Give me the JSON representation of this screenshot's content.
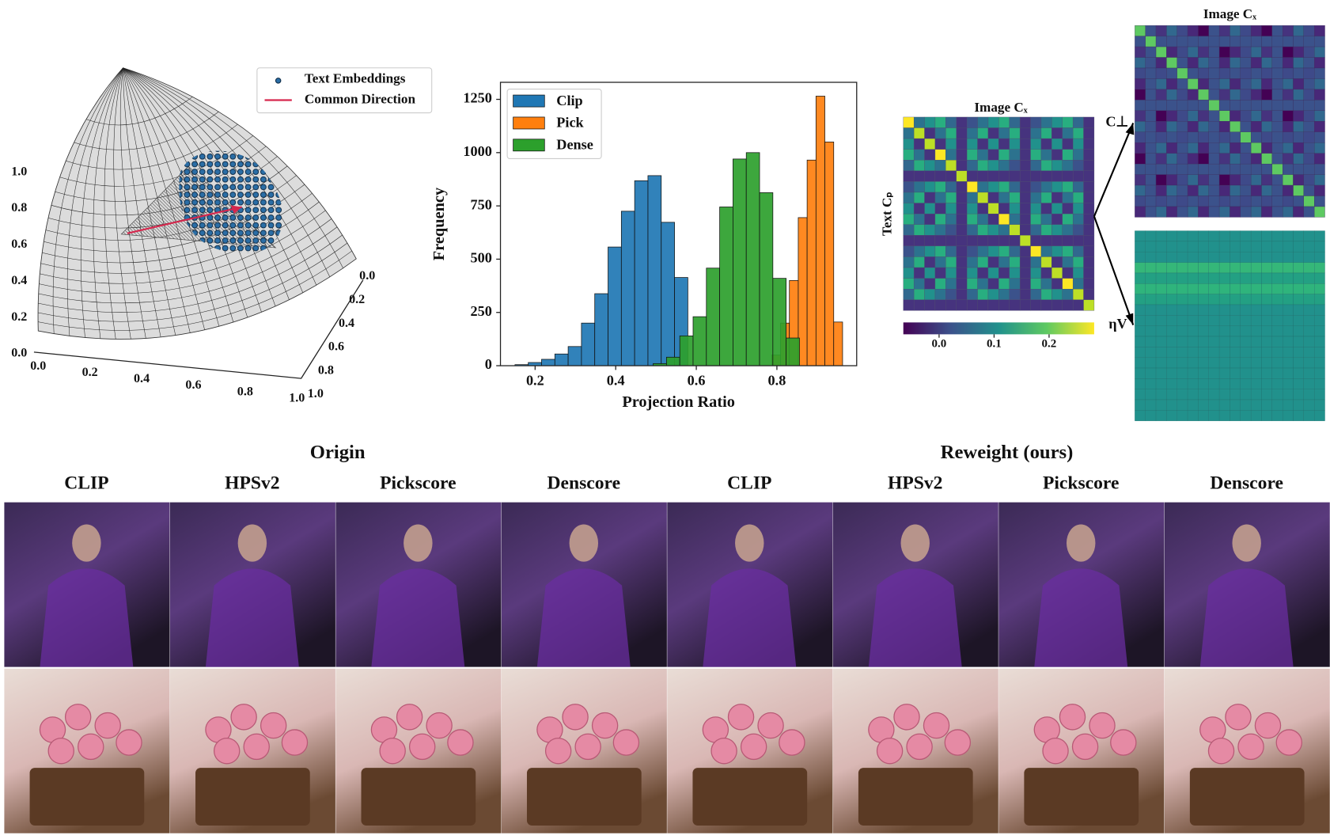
{
  "chart_data": [
    {
      "type": "sphere3d",
      "legend": [
        {
          "name": "Text Embeddings",
          "color": "#2b6ea6"
        },
        {
          "name": "Common Direction",
          "color": "#d6274d"
        }
      ],
      "xlim": [
        0,
        1
      ],
      "ylim": [
        0,
        1
      ],
      "zlim": [
        0,
        1
      ],
      "xticks": [
        {
          "value": 0,
          "label": "0.0"
        },
        0.2,
        0.4,
        0.6,
        0.8,
        {
          "value": 1,
          "label": "1.0"
        }
      ],
      "yticks": [
        {
          "value": 0,
          "label": "0.0"
        },
        0.2,
        0.4,
        0.6,
        0.8,
        {
          "value": 1,
          "label": "1.0"
        }
      ],
      "zticks": [
        {
          "value": 0,
          "label": "0.0"
        },
        0.2,
        0.4,
        0.6,
        0.8,
        {
          "value": 1,
          "label": "1.0"
        }
      ]
    },
    {
      "type": "histogram",
      "xlabel": "Projection Ratio",
      "ylabel": "Frequency",
      "legend": "upper left",
      "xlim": [
        0.114,
        0.998
      ],
      "ylim": [
        0,
        1330
      ],
      "xticks": [
        0.2,
        0.4,
        0.6,
        0.8
      ],
      "yticks": [
        0,
        250,
        500,
        750,
        1000,
        1250
      ],
      "series": [
        {
          "name": "Clip",
          "color": "#1f77b4",
          "bins": [
            0.15,
            0.183,
            0.216,
            0.249,
            0.282,
            0.315,
            0.348,
            0.381,
            0.414,
            0.447,
            0.48,
            0.513,
            0.546,
            0.579
          ],
          "values": [
            5,
            15,
            30,
            55,
            90,
            200,
            338,
            557,
            725,
            868,
            892,
            673,
            414
          ]
        },
        {
          "name": "Pick",
          "color": "#ff7f0e",
          "bins": [
            0.787,
            0.809,
            0.831,
            0.853,
            0.875,
            0.897,
            0.919,
            0.941,
            0.963
          ],
          "values": [
            50,
            200,
            400,
            695,
            965,
            1265,
            1050,
            205
          ]
        },
        {
          "name": "Dense",
          "color": "#2ca02c",
          "bins": [
            0.493,
            0.526,
            0.559,
            0.592,
            0.625,
            0.658,
            0.691,
            0.724,
            0.757,
            0.79,
            0.823,
            0.856
          ],
          "values": [
            10,
            40,
            140,
            230,
            458,
            745,
            970,
            1000,
            812,
            410,
            130
          ]
        }
      ]
    },
    {
      "type": "heatmap",
      "title": "Image Cₓ",
      "ylabel": "Text Cₚ",
      "colorbar_lim": [
        -0.065,
        0.282
      ],
      "colorbar_ticks": [
        {
          "value": 0,
          "label": "0.0"
        },
        0.1,
        0.2
      ]
    },
    {
      "type": "heatmap-pair",
      "title": "Image Cₓ",
      "labels": [
        "C⊥",
        "ηV"
      ]
    }
  ],
  "figure": {
    "groups": [
      "Origin",
      "Reweight (ours)"
    ],
    "columns": [
      "CLIP",
      "HPSv2",
      "Pickscore",
      "Denscore",
      "CLIP",
      "HPSv2",
      "Pickscore",
      "Denscore"
    ]
  }
}
